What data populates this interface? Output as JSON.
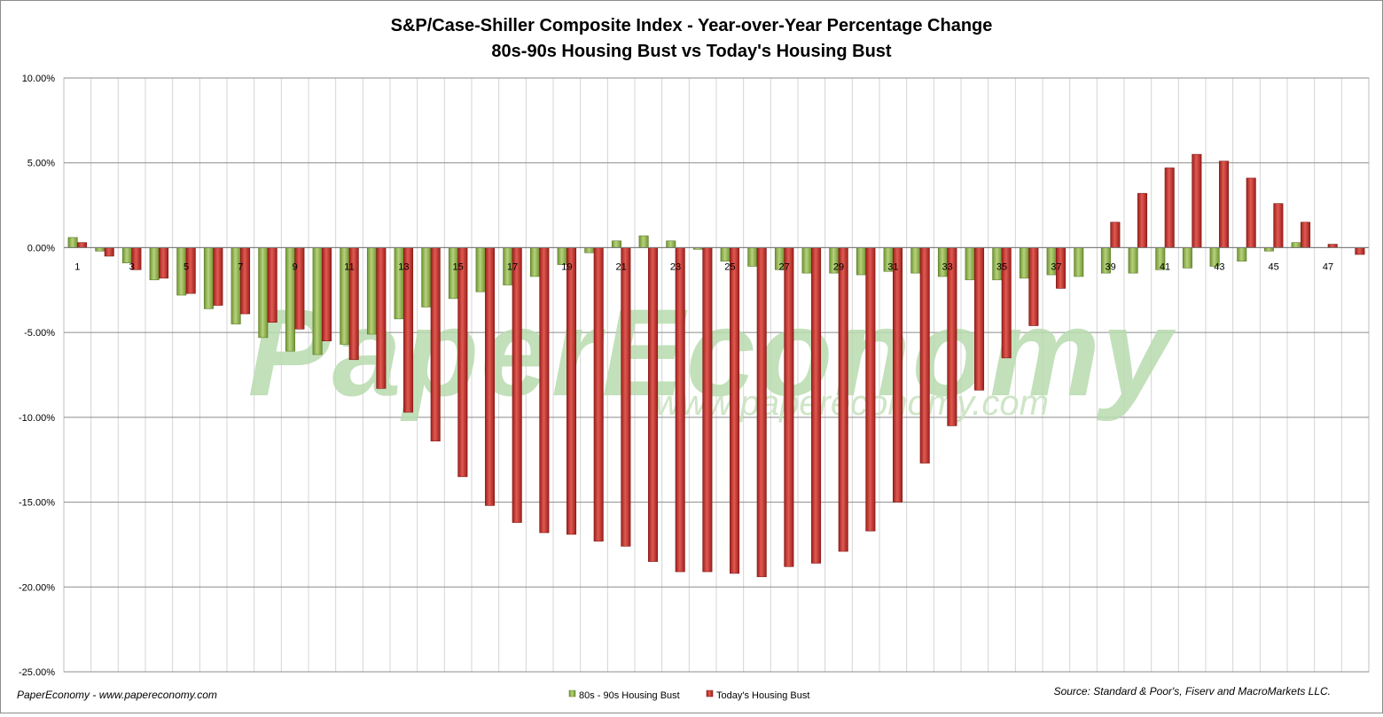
{
  "chart_data": {
    "type": "bar",
    "title": "S&P/Case-Shiller Composite Index - Year-over-Year Percentage Change",
    "subtitle": "80s-90s Housing Bust vs Today's Housing Bust",
    "xlabel": "",
    "ylabel": "",
    "ylim": [
      -25,
      10
    ],
    "yticks": [
      "10.00%",
      "5.00%",
      "0.00%",
      "-5.00%",
      "-10.00%",
      "-15.00%",
      "-20.00%",
      "-25.00%"
    ],
    "categories": [
      "1",
      "2",
      "3",
      "4",
      "5",
      "6",
      "7",
      "8",
      "9",
      "10",
      "11",
      "12",
      "13",
      "14",
      "15",
      "16",
      "17",
      "18",
      "19",
      "20",
      "21",
      "22",
      "23",
      "24",
      "25",
      "26",
      "27",
      "28",
      "29",
      "30",
      "31",
      "32",
      "33",
      "34",
      "35",
      "36",
      "37",
      "38",
      "39",
      "40",
      "41",
      "42",
      "43",
      "44",
      "45",
      "46",
      "47",
      "48"
    ],
    "xtick_labels": [
      "1",
      "3",
      "5",
      "7",
      "9",
      "11",
      "13",
      "15",
      "17",
      "19",
      "21",
      "23",
      "25",
      "27",
      "29",
      "31",
      "33",
      "35",
      "37",
      "39",
      "41",
      "43",
      "45",
      "47"
    ],
    "grid": true,
    "legend_position": "bottom-center",
    "series": [
      {
        "name": "80s - 90s Housing Bust",
        "color": "#8db04b",
        "values": [
          0.6,
          -0.2,
          -0.9,
          -1.9,
          -2.8,
          -3.6,
          -4.5,
          -5.3,
          -6.1,
          -6.3,
          -5.7,
          -5.1,
          -4.2,
          -3.5,
          -3.0,
          -2.6,
          -2.2,
          -1.7,
          -1.0,
          -0.3,
          0.4,
          0.7,
          0.4,
          -0.1,
          -0.8,
          -1.1,
          -1.3,
          -1.5,
          -1.5,
          -1.6,
          -1.4,
          -1.5,
          -1.7,
          -1.9,
          -1.9,
          -1.8,
          -1.6,
          -1.7,
          -1.5,
          -1.5,
          -1.3,
          -1.2,
          -1.1,
          -0.8,
          -0.2,
          0.3,
          0.0,
          0.0
        ]
      },
      {
        "name": "Today's Housing Bust",
        "color": "#c0302a",
        "values": [
          0.3,
          -0.5,
          -1.3,
          -1.8,
          -2.7,
          -3.4,
          -3.9,
          -4.4,
          -4.8,
          -5.5,
          -6.6,
          -8.3,
          -9.7,
          -11.4,
          -13.5,
          -15.2,
          -16.2,
          -16.8,
          -16.9,
          -17.3,
          -17.6,
          -18.5,
          -19.1,
          -19.1,
          -19.2,
          -19.4,
          -18.8,
          -18.6,
          -17.9,
          -16.7,
          -15.0,
          -12.7,
          -10.5,
          -8.4,
          -6.5,
          -4.6,
          -2.4,
          0.0,
          1.5,
          3.2,
          4.7,
          5.5,
          5.1,
          4.1,
          2.6,
          1.5,
          0.2,
          -0.4
        ]
      }
    ],
    "footer_left": "PaperEconomy - www.papereconomy.com",
    "footer_right": "Source: Standard & Poor's, Fiserv and MacroMarkets LLC.",
    "watermark": "PaperEconomy",
    "watermark_url": "www.papereconomy.com"
  }
}
